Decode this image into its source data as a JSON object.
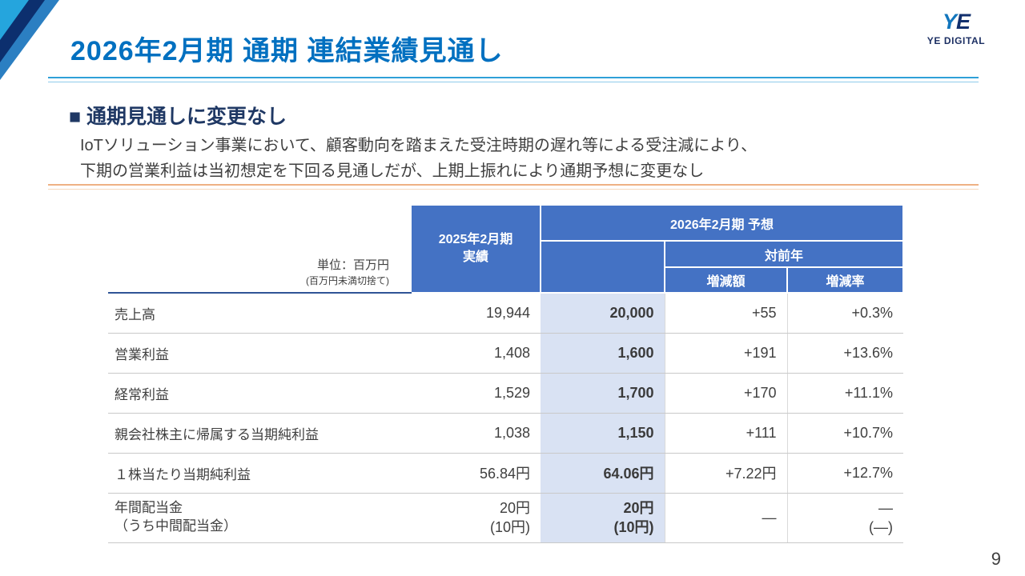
{
  "slide": {
    "title": "2026年2月期 通期 連結業績見通し",
    "page_number": "9"
  },
  "logo": {
    "mark_y": "Y",
    "mark_e": "E",
    "text": "YE DIGITAL"
  },
  "section": {
    "heading": "■ 通期見通しに変更なし",
    "body_line1": "IoTソリューション事業において、顧客動向を踏まえた受注時期の遅れ等による受注減により、",
    "body_line2": "下期の営業利益は当初想定を下回る見通しだが、上期上振れにより通期予想に変更なし"
  },
  "table": {
    "unit_note": "単位：百万円",
    "unit_note_sub": "(百万円未満切捨て)",
    "headers": {
      "actual": "2025年2月期\n実績",
      "forecast_group": "2026年2月期 予想",
      "yoy": "対前年",
      "delta": "増減額",
      "rate": "増減率"
    },
    "rows": [
      {
        "label": "売上高",
        "actual": "19,944",
        "forecast": "20,000",
        "delta": "+55",
        "rate": "+0.3%"
      },
      {
        "label": "営業利益",
        "actual": "1,408",
        "forecast": "1,600",
        "delta": "+191",
        "rate": "+13.6%"
      },
      {
        "label": "経常利益",
        "actual": "1,529",
        "forecast": "1,700",
        "delta": "+170",
        "rate": "+11.1%"
      },
      {
        "label": "親会社株主に帰属する当期純利益",
        "actual": "1,038",
        "forecast": "1,150",
        "delta": "+111",
        "rate": "+10.7%"
      },
      {
        "label": "１株当たり当期純利益",
        "actual": "56.84円",
        "forecast": "64.06円",
        "delta": "+7.22円",
        "rate": "+12.7%"
      },
      {
        "label": "年間配当金\n（うち中間配当金）",
        "actual": "20円\n(10円)",
        "forecast": "20円\n(10円)",
        "delta": "―",
        "rate": "―\n(―)"
      }
    ]
  },
  "colors": {
    "title_blue": "#0070C0",
    "heading_navy": "#1F3864",
    "table_header_blue": "#4472C4",
    "forecast_bg": "#D9E2F3",
    "divider_blue": "#2FA0D8",
    "divider_orange": "#EEB184"
  }
}
